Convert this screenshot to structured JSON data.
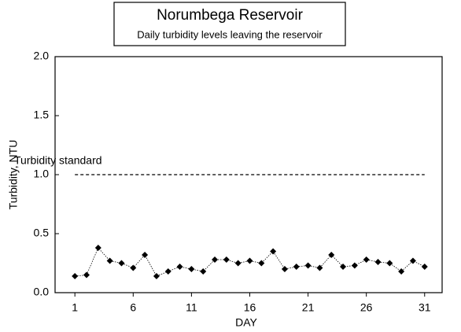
{
  "chart_data": {
    "type": "line",
    "title": "Norumbega Reservoir",
    "subtitle": "Daily turbidity levels leaving the reservoir",
    "xlabel": "DAY",
    "ylabel": "Turbidity, NTU",
    "x": [
      1,
      2,
      3,
      4,
      5,
      6,
      7,
      8,
      9,
      10,
      11,
      12,
      13,
      14,
      15,
      16,
      17,
      18,
      19,
      20,
      21,
      22,
      23,
      24,
      25,
      26,
      27,
      28,
      29,
      30,
      31
    ],
    "series": [
      {
        "name": "Turbidity",
        "color": "#000000",
        "values": [
          0.14,
          0.15,
          0.38,
          0.27,
          0.25,
          0.21,
          0.32,
          0.14,
          0.18,
          0.22,
          0.2,
          0.18,
          0.28,
          0.28,
          0.25,
          0.27,
          0.25,
          0.35,
          0.2,
          0.22,
          0.23,
          0.21,
          0.32,
          0.22,
          0.23,
          0.28,
          0.26,
          0.25,
          0.18,
          0.27,
          0.22
        ]
      }
    ],
    "reference_line": {
      "value": 1.0,
      "label": "Turbidity standard",
      "x": [
        1,
        31
      ]
    },
    "xlim": [
      -0.7,
      32.5
    ],
    "xticks": [
      1,
      6,
      11,
      16,
      21,
      26,
      31
    ],
    "ylim": [
      0,
      2
    ],
    "yticks": [
      {
        "value": 0,
        "label": "0.0"
      },
      {
        "value": 0.5,
        "label": "0.5"
      },
      {
        "value": 1,
        "label": "1.0"
      },
      {
        "value": 1.5,
        "label": "1.5"
      },
      {
        "value": 2,
        "label": "2.0"
      }
    ]
  }
}
